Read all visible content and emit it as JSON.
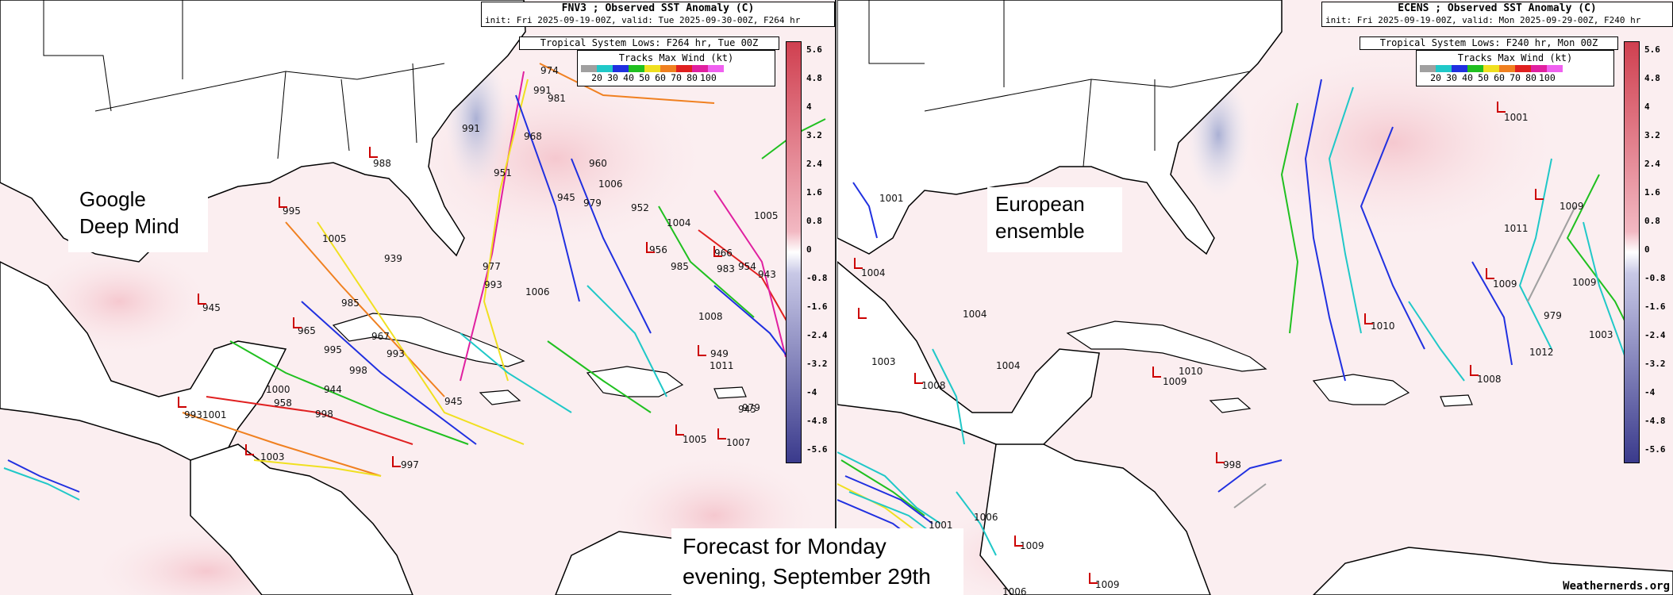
{
  "left_panel": {
    "title": "FNV3 ; Observed SST Anomaly (C)",
    "init_line": "init: Fri 2025-09-19-00Z, valid: Tue 2025-09-30-00Z, F264 hr",
    "tsl_line": "Tropical System Lows: F264 hr, Tue 00Z",
    "legend_title": "Tracks Max Wind (kt)",
    "annotation": "Google Deep Mind",
    "pressures": [
      "974",
      "991",
      "981",
      "991",
      "968",
      "960",
      "1006",
      "945",
      "979",
      "952",
      "1004",
      "1005",
      "951",
      "988",
      "995",
      "1005",
      "939",
      "956",
      "985",
      "966",
      "983",
      "954",
      "943",
      "977",
      "993",
      "1006",
      "945",
      "985",
      "1008",
      "965",
      "995",
      "967",
      "993",
      "949",
      "1011",
      "998",
      "1000",
      "944",
      "958",
      "998",
      "945",
      "993",
      "1001",
      "945",
      "979",
      "1005",
      "1007",
      "997",
      "1003"
    ]
  },
  "right_panel": {
    "title": "ECENS ; Observed SST Anomaly (C)",
    "init_line": "init: Fri 2025-09-19-00Z, valid: Mon 2025-09-29-00Z, F240 hr",
    "tsl_line": "Tropical System Lows: F240 hr, Mon 00Z",
    "legend_title": "Tracks Max Wind (kt)",
    "annotation": "European ensemble",
    "pressures": [
      "1001",
      "1009",
      "1011",
      "1009",
      "1009",
      "979",
      "1003",
      "1004",
      "1003",
      "1010",
      "1008",
      "1012",
      "1010",
      "1009",
      "1001",
      "1008",
      "1004",
      "1004",
      "998",
      "1006",
      "1009",
      "1006",
      "1009",
      "1001"
    ]
  },
  "wind_legend": {
    "labels": [
      "20",
      "30",
      "40",
      "50",
      "60",
      "70",
      "80",
      "100"
    ],
    "colors": [
      "#a0a0a0",
      "#20c8c8",
      "#2030e0",
      "#20c020",
      "#f0e020",
      "#f08020",
      "#e02020",
      "#e020a0",
      "#f060f0"
    ]
  },
  "colorbar": {
    "ticks": [
      "5.6",
      "4.8",
      "4",
      "3.2",
      "2.4",
      "1.6",
      "0.8",
      "0",
      "-0.8",
      "-1.6",
      "-2.4",
      "-3.2",
      "-4",
      "-4.8",
      "-5.6"
    ],
    "warm_color": "#d04050",
    "cold_color": "#3a3a8c"
  },
  "bottom_caption": "Forecast for Monday evening, September 29th",
  "credit": "Weathernerds.org"
}
